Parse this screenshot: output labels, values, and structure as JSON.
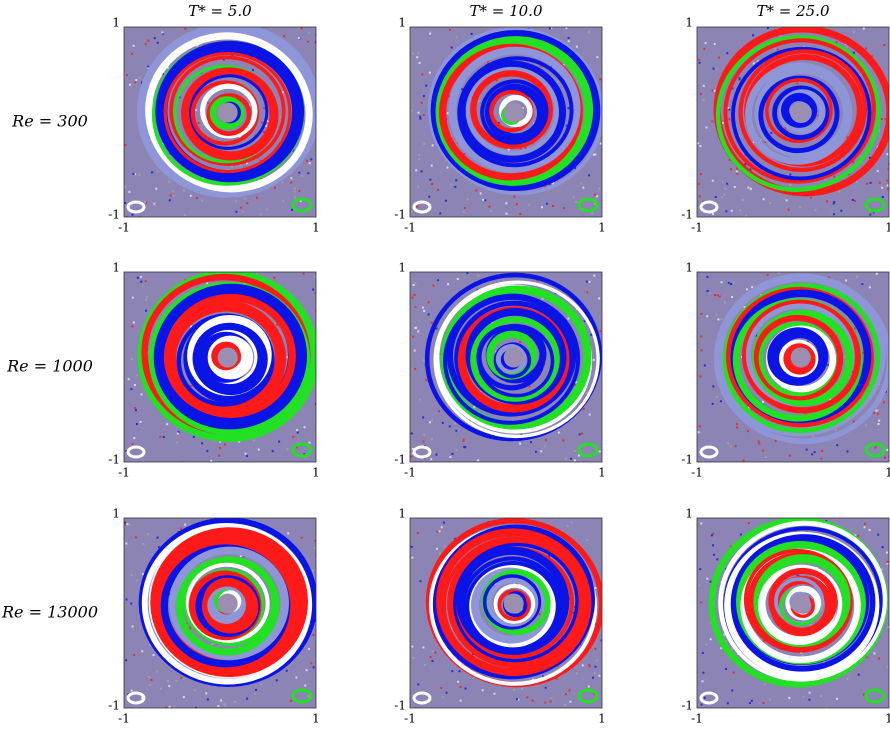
{
  "figure": {
    "column_titles": [
      "T* = 5.0",
      "T* = 10.0",
      "T* = 25.0"
    ],
    "row_labels": [
      "Re = 300",
      "Re = 1000",
      "Re = 13000"
    ],
    "x_tick_labels": [
      "-1",
      "1"
    ],
    "y_tick_labels": [
      "-1",
      "1"
    ]
  }
}
